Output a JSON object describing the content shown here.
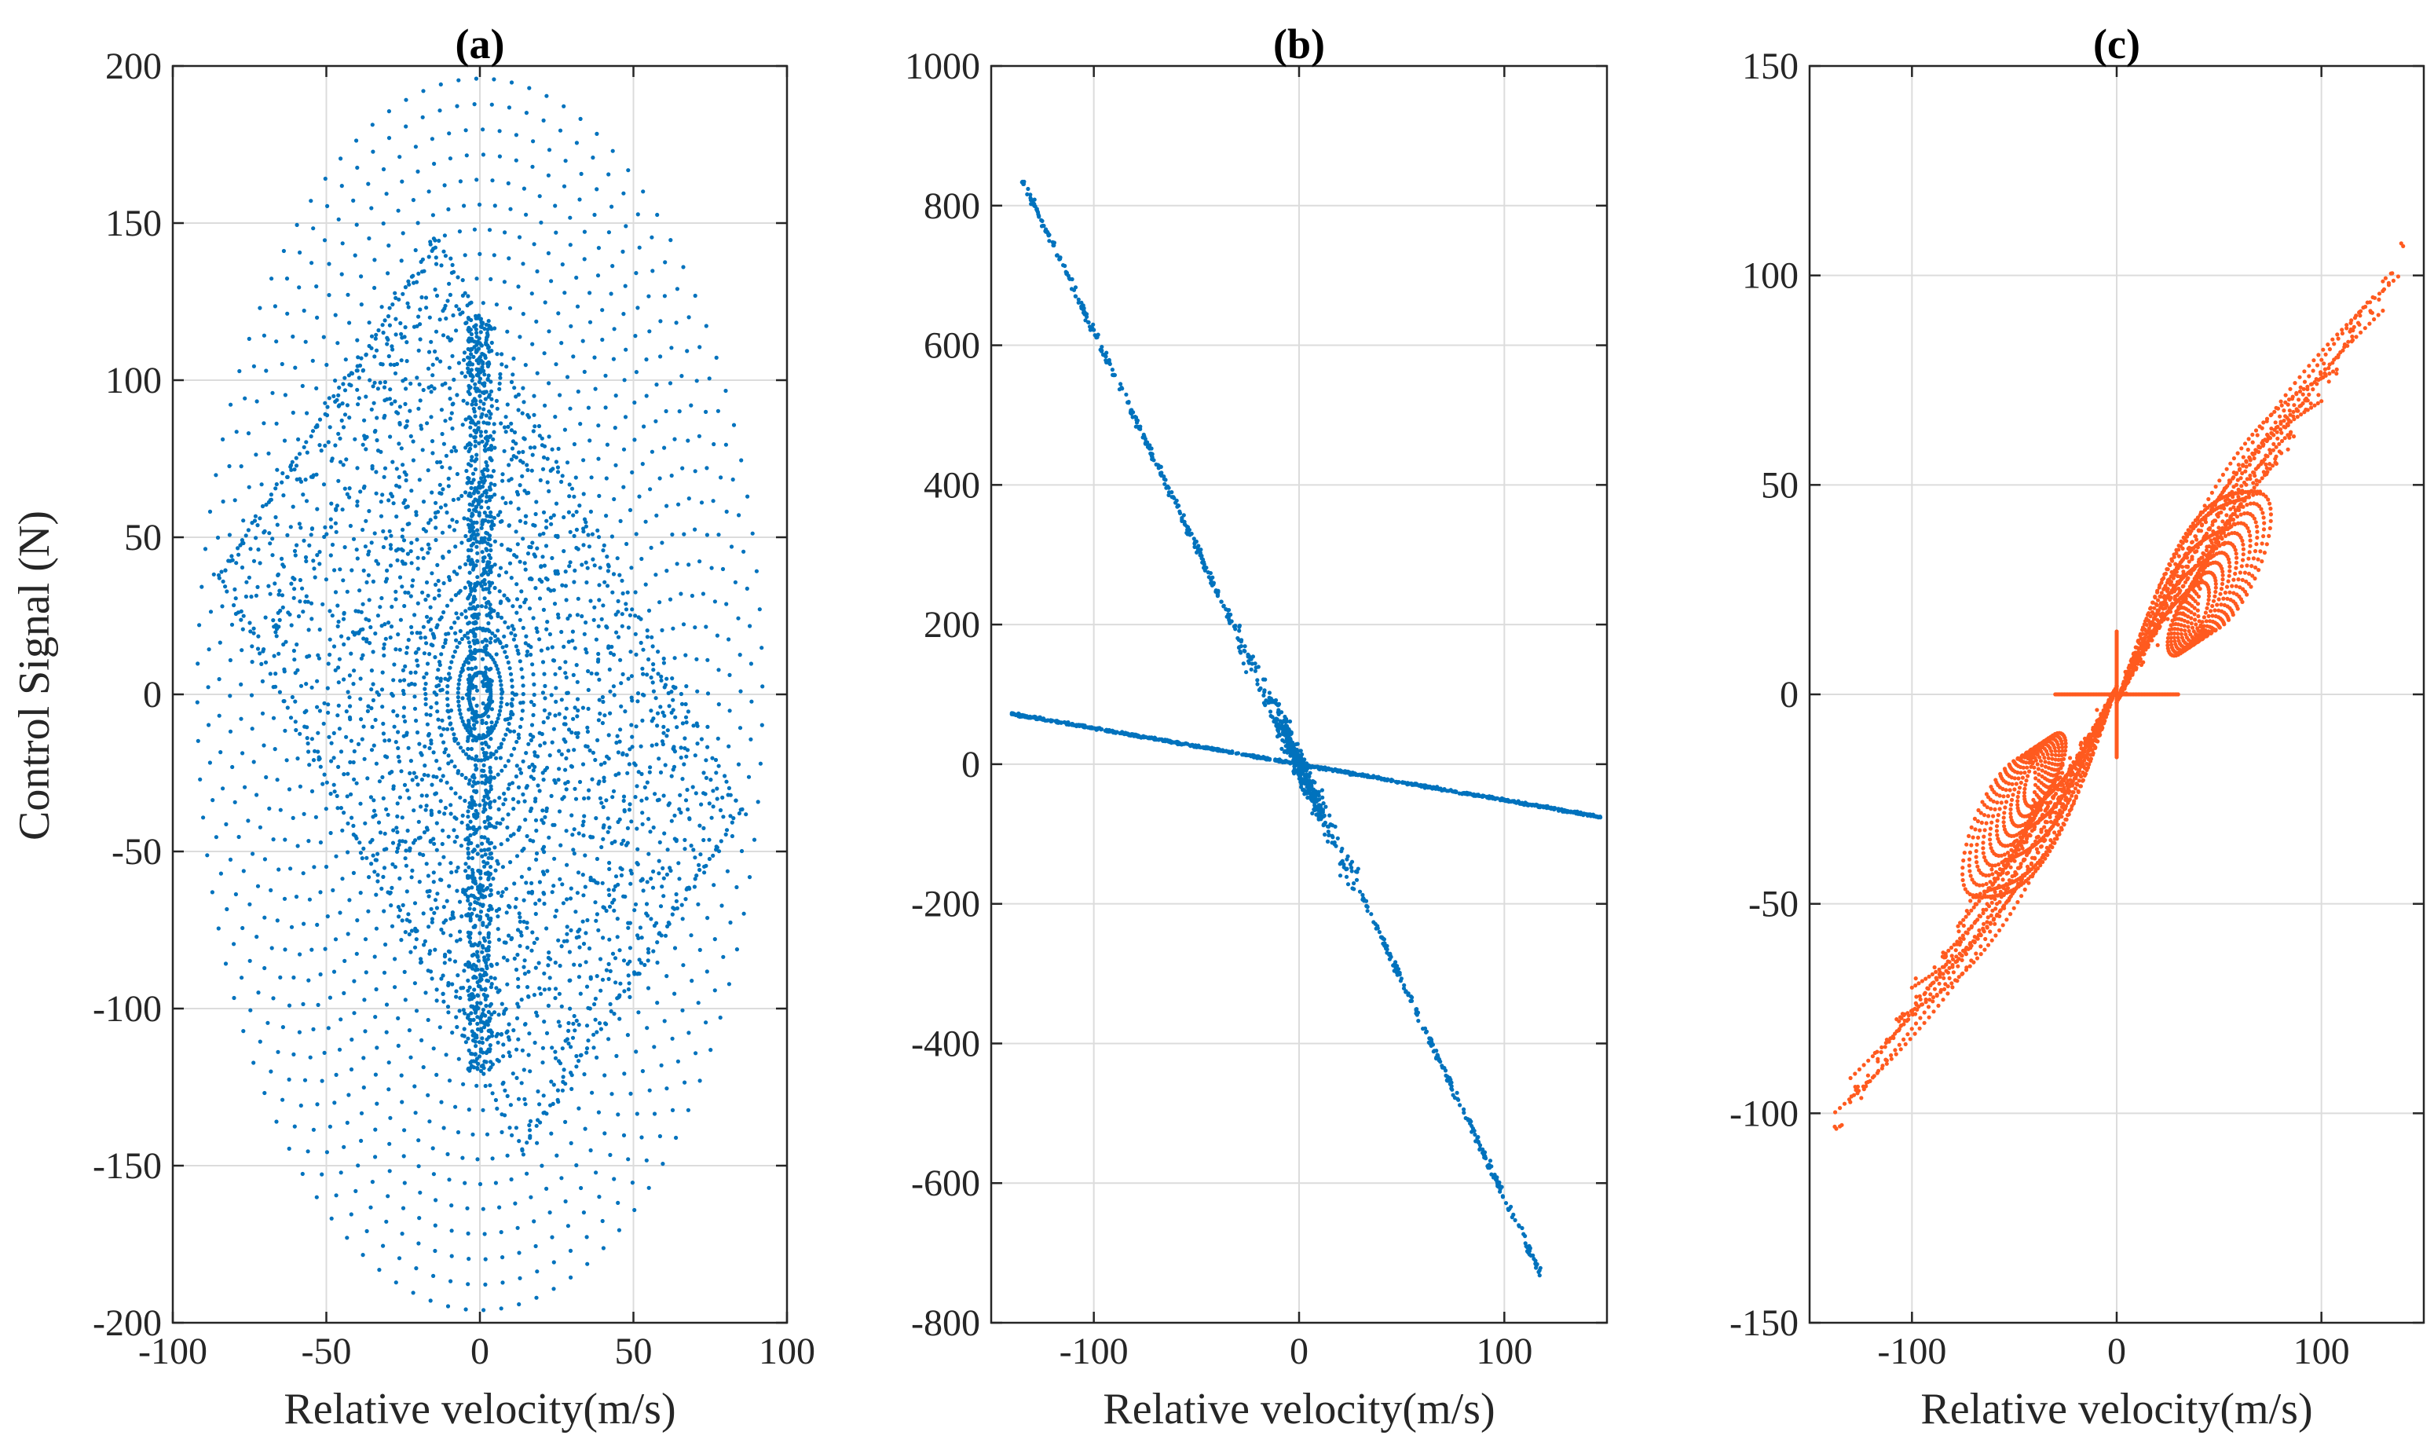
{
  "figure": {
    "ylabel_shared": "Control Signal (N)"
  },
  "chart_data": [
    {
      "type": "scatter",
      "title": "(a)",
      "xlabel": "Relative velocity(m/s)",
      "ylabel": "Control Signal (N)",
      "xlim": [
        -100,
        100
      ],
      "ylim": [
        -200,
        200
      ],
      "xticks": [
        -100,
        -50,
        0,
        50,
        100
      ],
      "yticks": [
        -200,
        -150,
        -100,
        -50,
        0,
        50,
        100,
        150,
        200
      ],
      "xtick_labels": [
        "-100",
        "-50",
        "0",
        "50",
        "100"
      ],
      "ytick_labels": [
        "-200",
        "-150",
        "-100",
        "-50",
        "0",
        "50",
        "100",
        "150",
        "200"
      ],
      "grid": true,
      "color": "#0072BD",
      "series": [
        {
          "name": "outer envelope (ellipse)",
          "center": [
            0,
            0
          ],
          "x_radius": 92,
          "y_radius": 196
        },
        {
          "name": "inner diamond region",
          "vertices": [
            [
              -85,
              37
            ],
            [
              -14,
              145
            ],
            [
              85,
              -37
            ],
            [
              14,
              -145
            ]
          ]
        },
        {
          "name": "dense vertical band",
          "x_range": [
            -4,
            4
          ],
          "y_range": [
            -120,
            120
          ]
        }
      ]
    },
    {
      "type": "scatter",
      "title": "(b)",
      "xlabel": "Relative velocity(m/s)",
      "ylabel": "",
      "xlim": [
        -150,
        150
      ],
      "ylim": [
        -800,
        1000
      ],
      "xticks": [
        -100,
        0,
        100
      ],
      "yticks": [
        -800,
        -600,
        -400,
        -200,
        0,
        200,
        400,
        600,
        800,
        1000
      ],
      "xtick_labels": [
        "-100",
        "0",
        "100"
      ],
      "ytick_labels": [
        "-800",
        "-600",
        "-400",
        "-200",
        "0",
        "200",
        "400",
        "600",
        "800",
        "1000"
      ],
      "grid": true,
      "color": "#0072BD",
      "series": [
        {
          "name": "steep line",
          "x": [
            -135,
            -100,
            -60,
            -30,
            -10,
            0,
            10,
            30,
            60,
            100,
            118
          ],
          "y": [
            813,
            620,
            380,
            190,
            70,
            0,
            -70,
            -190,
            -380,
            -620,
            -740
          ]
        },
        {
          "name": "shallow line",
          "x": [
            -140,
            -100,
            -50,
            0,
            50,
            100,
            147
          ],
          "y": [
            72,
            52,
            27,
            0,
            -26,
            -51,
            -76
          ]
        }
      ]
    },
    {
      "type": "scatter",
      "title": "(c)",
      "xlabel": "Relative velocity(m/s)",
      "ylabel": "",
      "xlim": [
        -150,
        150
      ],
      "ylim": [
        -150,
        150
      ],
      "xticks": [
        -100,
        0,
        100
      ],
      "yticks": [
        -150,
        -100,
        -50,
        0,
        50,
        100,
        150
      ],
      "xtick_labels": [
        "-100",
        "0",
        "100"
      ],
      "ytick_labels": [
        "-150",
        "-100",
        "-50",
        "0",
        "50",
        "100",
        "150"
      ],
      "grid": true,
      "color": "#FF5A1F",
      "series": [
        {
          "name": "upper-right lobes",
          "x": [
            0,
            30,
            60,
            90,
            110,
            130,
            145
          ],
          "y": [
            0,
            10,
            30,
            55,
            75,
            90,
            109
          ]
        },
        {
          "name": "lower-left lobes",
          "x": [
            0,
            -30,
            -60,
            -90,
            -120,
            -140
          ],
          "y": [
            0,
            -10,
            -30,
            -55,
            -75,
            -106
          ]
        },
        {
          "name": "flat segment",
          "x": [
            -30,
            30
          ],
          "y": [
            0,
            0
          ]
        },
        {
          "name": "vertical segment",
          "x": [
            0,
            0
          ],
          "y": [
            -15,
            15
          ]
        }
      ]
    }
  ]
}
